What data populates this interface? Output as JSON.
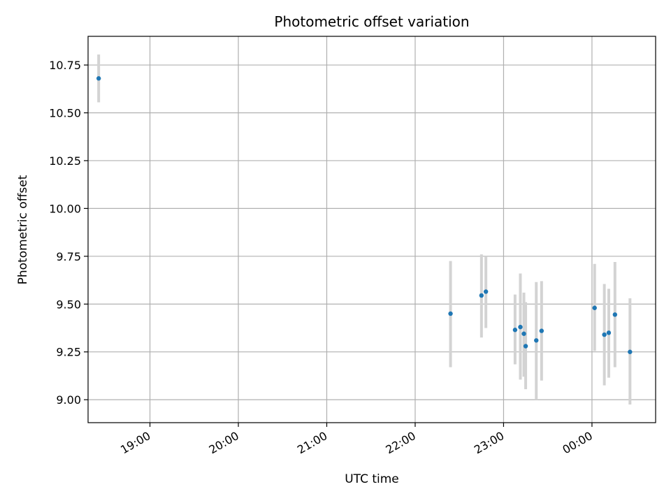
{
  "chart_data": {
    "type": "scatter",
    "title": "Photometric offset variation",
    "xlabel": "UTC time",
    "ylabel": "Photometric offset",
    "x_unit": "hour",
    "xlim": [
      18.3,
      24.72
    ],
    "ylim": [
      8.88,
      10.9
    ],
    "x_ticks": [
      {
        "value": 19,
        "label": "19:00"
      },
      {
        "value": 20,
        "label": "20:00"
      },
      {
        "value": 21,
        "label": "21:00"
      },
      {
        "value": 22,
        "label": "22:00"
      },
      {
        "value": 23,
        "label": "23:00"
      },
      {
        "value": 24,
        "label": "00:00"
      }
    ],
    "y_ticks": [
      {
        "value": 9.0,
        "label": "9.00"
      },
      {
        "value": 9.25,
        "label": "9.25"
      },
      {
        "value": 9.5,
        "label": "9.50"
      },
      {
        "value": 9.75,
        "label": "9.75"
      },
      {
        "value": 10.0,
        "label": "10.00"
      },
      {
        "value": 10.25,
        "label": "10.25"
      },
      {
        "value": 10.5,
        "label": "10.50"
      },
      {
        "value": 10.75,
        "label": "10.75"
      }
    ],
    "grid": true,
    "point_color": "#1f77b4",
    "errorbar_color": "#d3d3d3",
    "points": [
      {
        "x": 18.42,
        "y": 10.68,
        "ylow": 10.555,
        "yhigh": 10.805
      },
      {
        "x": 22.4,
        "y": 9.45,
        "ylow": 9.17,
        "yhigh": 9.725
      },
      {
        "x": 22.75,
        "y": 9.545,
        "ylow": 9.325,
        "yhigh": 9.76
      },
      {
        "x": 22.8,
        "y": 9.565,
        "ylow": 9.375,
        "yhigh": 9.75
      },
      {
        "x": 23.13,
        "y": 9.365,
        "ylow": 9.185,
        "yhigh": 9.55
      },
      {
        "x": 23.19,
        "y": 9.38,
        "ylow": 9.105,
        "yhigh": 9.66
      },
      {
        "x": 23.23,
        "y": 9.345,
        "ylow": 9.12,
        "yhigh": 9.56
      },
      {
        "x": 23.25,
        "y": 9.28,
        "ylow": 9.055,
        "yhigh": 9.51
      },
      {
        "x": 23.37,
        "y": 9.31,
        "ylow": 9.0,
        "yhigh": 9.615
      },
      {
        "x": 23.43,
        "y": 9.36,
        "ylow": 9.1,
        "yhigh": 9.62
      },
      {
        "x": 24.03,
        "y": 9.48,
        "ylow": 9.255,
        "yhigh": 9.71
      },
      {
        "x": 24.14,
        "y": 9.34,
        "ylow": 9.075,
        "yhigh": 9.605
      },
      {
        "x": 24.19,
        "y": 9.35,
        "ylow": 9.115,
        "yhigh": 9.58
      },
      {
        "x": 24.26,
        "y": 9.445,
        "ylow": 9.17,
        "yhigh": 9.72
      },
      {
        "x": 24.43,
        "y": 9.25,
        "ylow": 8.975,
        "yhigh": 9.53
      }
    ]
  }
}
